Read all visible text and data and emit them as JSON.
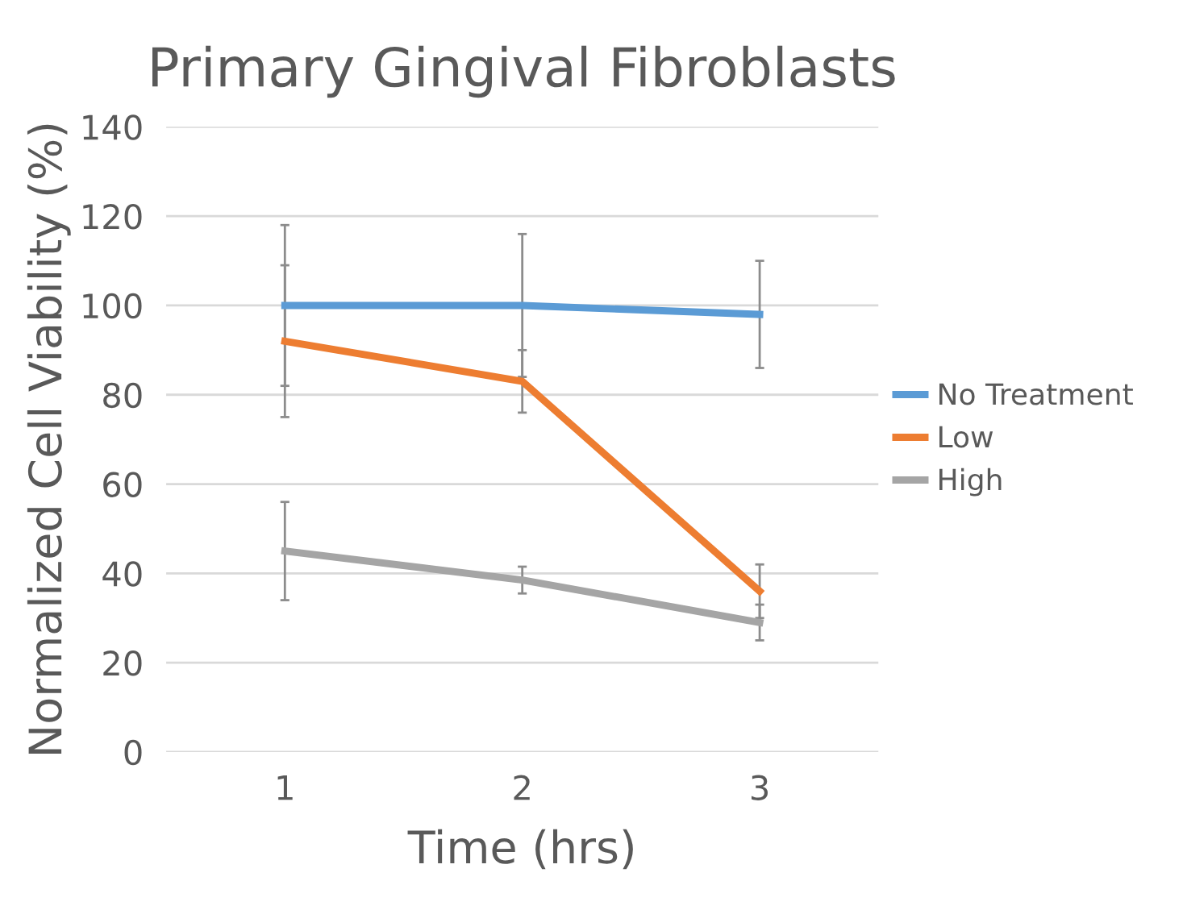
{
  "chart_data": {
    "type": "line",
    "title": "Primary Gingival Fibroblasts",
    "xlabel": "Time (hrs)",
    "ylabel": "Normalized Cell Viability (%)",
    "categories": [
      "1",
      "2",
      "3"
    ],
    "series": [
      {
        "name": "No Treatment",
        "color": "#5b9bd5",
        "values": [
          100,
          100,
          98
        ],
        "errors": [
          18,
          16,
          12
        ]
      },
      {
        "name": "Low",
        "color": "#ed7d31",
        "values": [
          92,
          83,
          36
        ],
        "errors": [
          17,
          7,
          6
        ]
      },
      {
        "name": "High",
        "color": "#a5a5a5",
        "values": [
          45,
          38.5,
          29
        ],
        "errors": [
          11,
          3,
          4
        ]
      }
    ],
    "ylim": [
      0,
      140
    ],
    "yticks": [
      0,
      20,
      40,
      60,
      80,
      100,
      120,
      140
    ],
    "grid": "y",
    "legend": "right",
    "marker": "none",
    "line_style": "solid"
  }
}
